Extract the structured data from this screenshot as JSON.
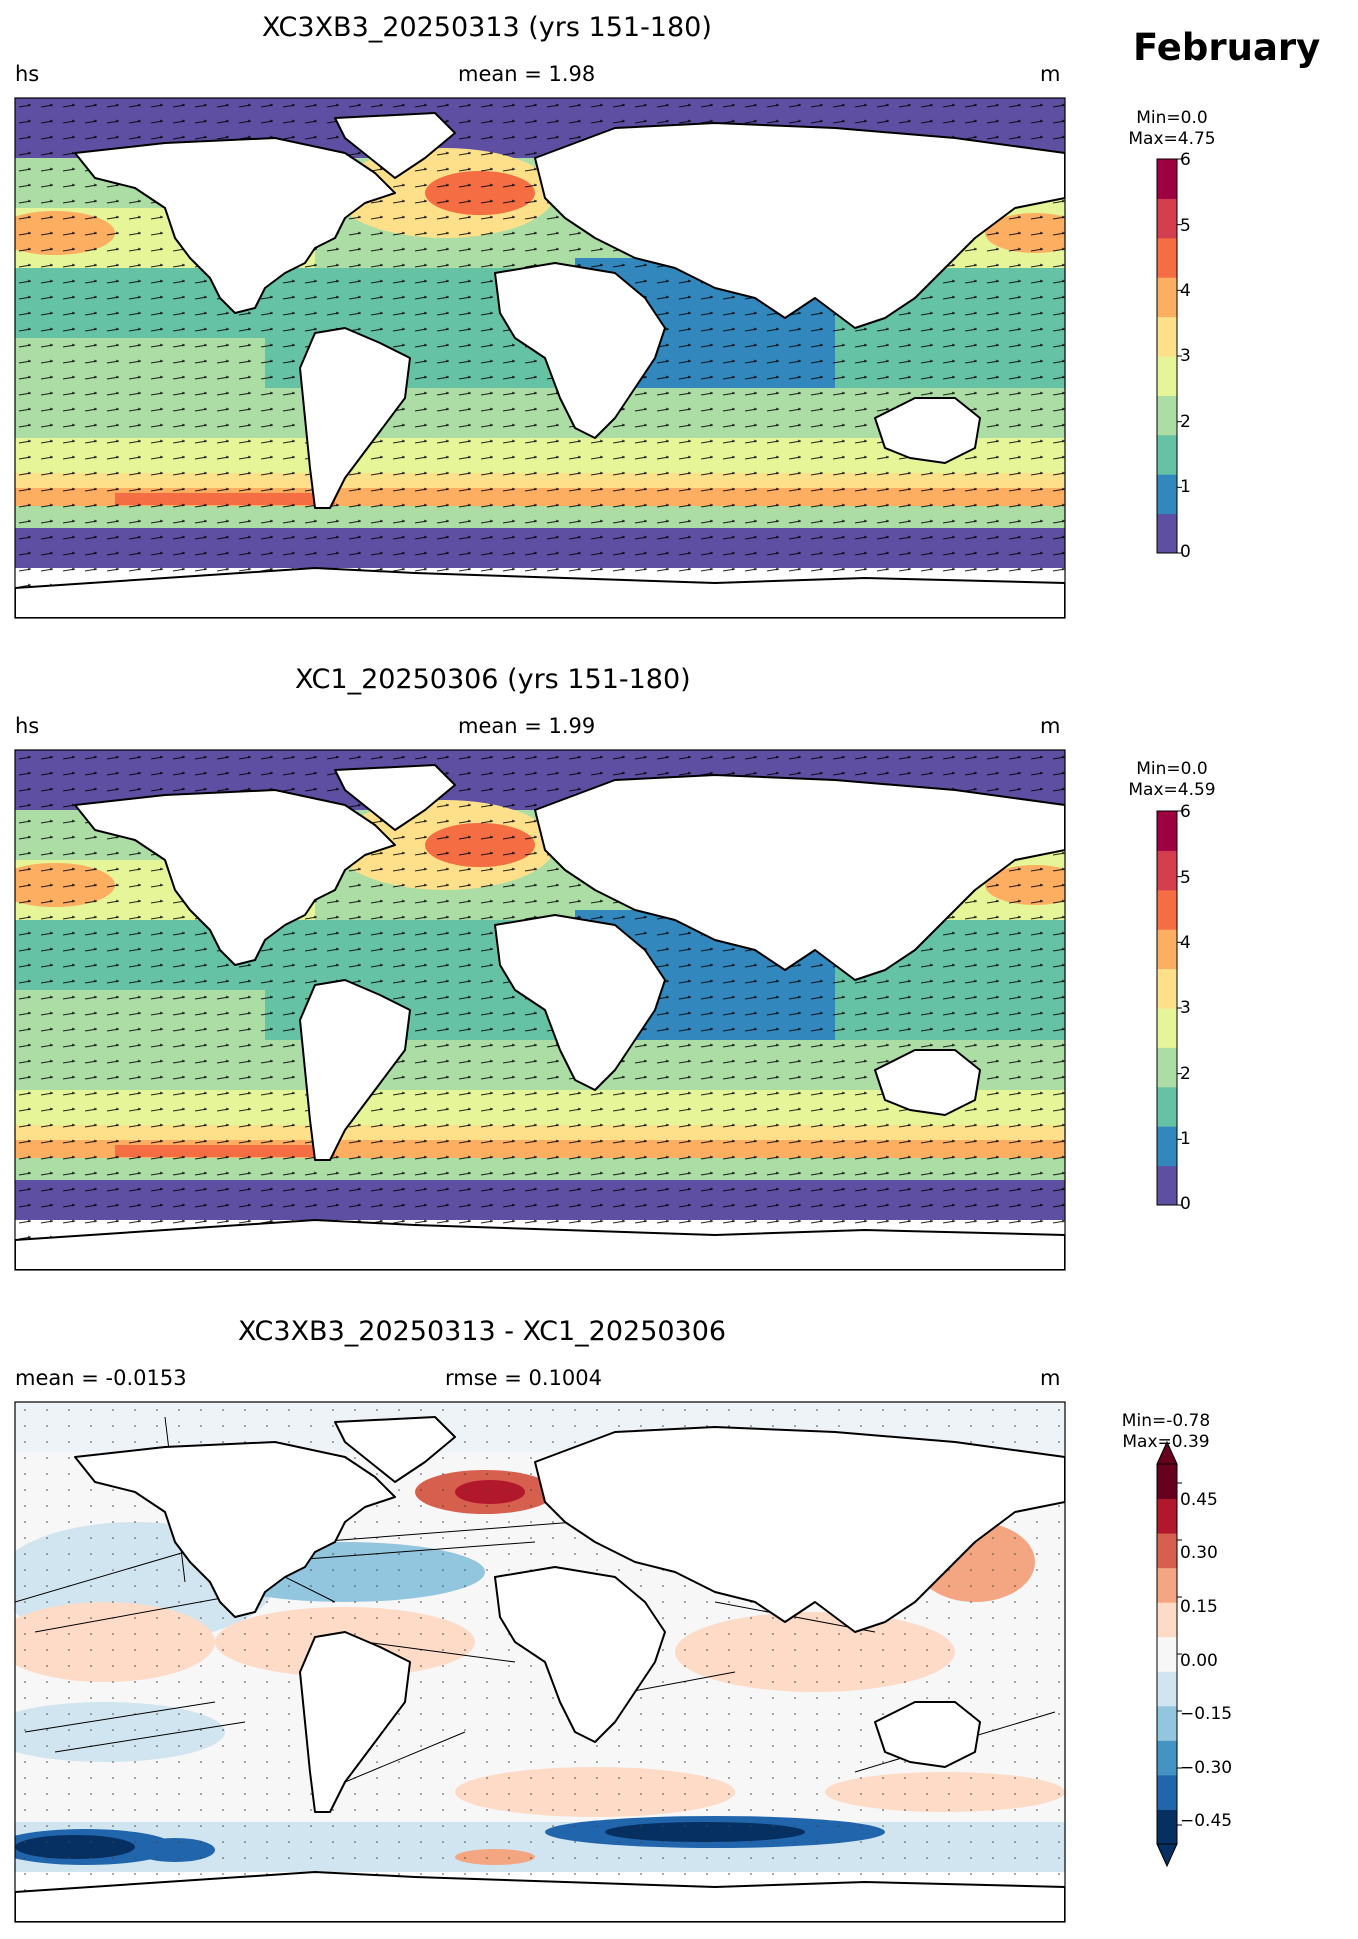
{
  "month": "February",
  "panels": [
    {
      "title": "XC3XB3_20250313 (yrs 151-180)",
      "left_label": "hs",
      "center_label": "mean = 1.98",
      "right_label": "m",
      "min_label": "Min=0.0",
      "max_label": "Max=4.75",
      "colorbar": {
        "ticks": [
          "0",
          "1",
          "2",
          "3",
          "4",
          "5",
          "6"
        ],
        "range": [
          0,
          6
        ],
        "colormap": "Spectral_r"
      }
    },
    {
      "title": "XC1_20250306 (yrs 151-180)",
      "left_label": "hs",
      "center_label": "mean = 1.99",
      "right_label": "m",
      "min_label": "Min=0.0",
      "max_label": "Max=4.59",
      "colorbar": {
        "ticks": [
          "0",
          "1",
          "2",
          "3",
          "4",
          "5",
          "6"
        ],
        "range": [
          0,
          6
        ],
        "colormap": "Spectral_r"
      }
    },
    {
      "title": "XC3XB3_20250313 - XC1_20250306",
      "left_label": "mean = -0.0153",
      "center_label": "rmse = 0.1004",
      "right_label": "m",
      "min_label": "Min=-0.78",
      "max_label": "Max=0.39",
      "colorbar": {
        "ticks": [
          "0.45",
          "0.30",
          "0.15",
          "0.00",
          "−0.15",
          "−0.30",
          "−0.45"
        ],
        "range": [
          -0.5,
          0.5
        ],
        "colormap": "RdBu_r"
      }
    }
  ],
  "colors": {
    "spectral": [
      "#5e4fa2",
      "#3288bd",
      "#66c2a5",
      "#abdda4",
      "#e6f598",
      "#fee08b",
      "#fdae61",
      "#f46d43",
      "#d53e4f",
      "#9e0142"
    ],
    "diverging": [
      "#053061",
      "#2166ac",
      "#4393c3",
      "#92c5de",
      "#d1e5f0",
      "#f7f7f7",
      "#fddbc7",
      "#f4a582",
      "#d6604d",
      "#b2182b",
      "#67001f"
    ],
    "land": "#ffffff",
    "coast": "#000000"
  }
}
